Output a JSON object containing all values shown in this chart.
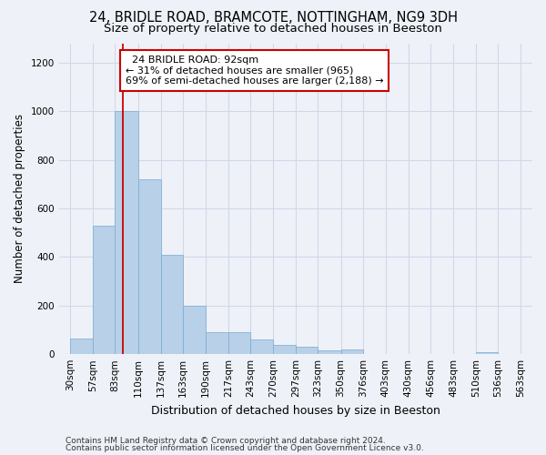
{
  "title1": "24, BRIDLE ROAD, BRAMCOTE, NOTTINGHAM, NG9 3DH",
  "title2": "Size of property relative to detached houses in Beeston",
  "xlabel": "Distribution of detached houses by size in Beeston",
  "ylabel": "Number of detached properties",
  "bins": [
    30,
    57,
    83,
    110,
    137,
    163,
    190,
    217,
    243,
    270,
    297,
    323,
    350,
    376,
    403,
    430,
    456,
    483,
    510,
    536,
    563
  ],
  "counts": [
    65,
    530,
    1000,
    720,
    410,
    200,
    90,
    90,
    60,
    40,
    32,
    15,
    20,
    0,
    0,
    0,
    0,
    0,
    10,
    0,
    0
  ],
  "bar_color": "#b8d0e8",
  "bar_edge_color": "#7aaad0",
  "grid_color": "#d0d8e8",
  "bg_color": "#eef2f8",
  "red_line_x": 92,
  "annotation_title": "24 BRIDLE ROAD: 92sqm",
  "annotation_line1": "← 31% of detached houses are smaller (965)",
  "annotation_line2": "69% of semi-detached houses are larger (2,188) →",
  "annotation_box_color": "#ffffff",
  "annotation_border_color": "#cc0000",
  "footer1": "Contains HM Land Registry data © Crown copyright and database right 2024.",
  "footer2": "Contains public sector information licensed under the Open Government Licence v3.0.",
  "ylim": [
    0,
    1280
  ],
  "yticks": [
    0,
    200,
    400,
    600,
    800,
    1000,
    1200
  ],
  "title1_fontsize": 10.5,
  "title2_fontsize": 9.5,
  "xlabel_fontsize": 9,
  "ylabel_fontsize": 8.5,
  "tick_fontsize": 7.5,
  "footer_fontsize": 6.5
}
